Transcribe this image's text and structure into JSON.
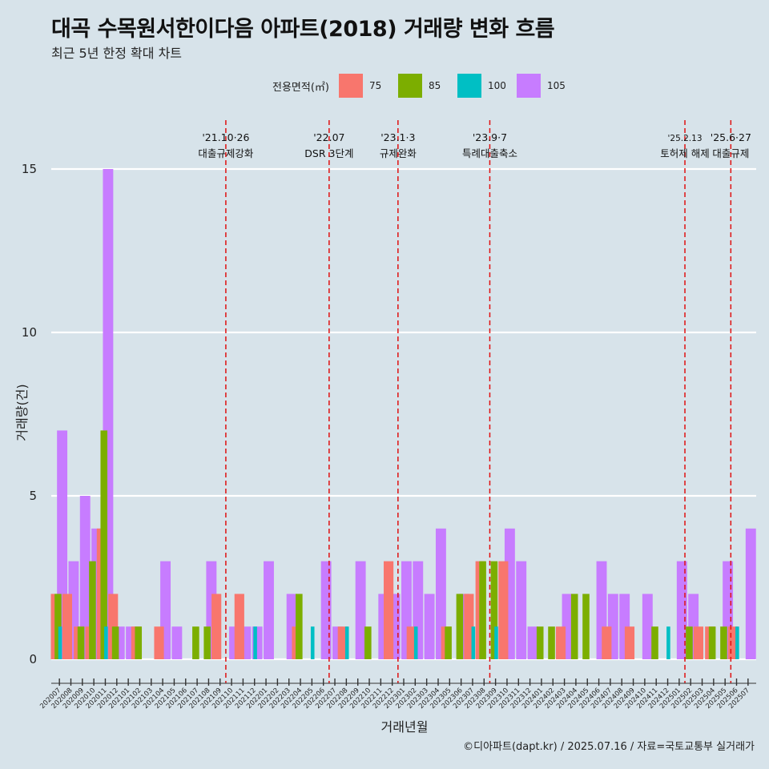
{
  "title": "대곡 수목원서한이다음 아파트(2018) 거래량 변화 흐름",
  "subtitle": "최근 5년 한정 확대 차트",
  "caption": "©디아파트(dapt.kr) / 2025.07.16 / 자료=국토교통부 실거래가",
  "legend": {
    "title": "전용면적(㎡)",
    "items": [
      {
        "label": "75",
        "color": "#f8766d"
      },
      {
        "label": "85",
        "color": "#7cae00"
      },
      {
        "label": "100",
        "color": "#00bfc4"
      },
      {
        "label": "105",
        "color": "#c77cff"
      }
    ]
  },
  "chart_data": {
    "type": "bar",
    "xlabel": "거래년월",
    "ylabel": "거래량(건)",
    "ylim": [
      0,
      15
    ],
    "yticks": [
      0,
      5,
      10,
      15
    ],
    "grid": true,
    "legend_position": "top",
    "categories": [
      "202007",
      "202008",
      "202009",
      "202010",
      "202011",
      "202012",
      "202101",
      "202102",
      "202103",
      "202104",
      "202105",
      "202106",
      "202107",
      "202108",
      "202109",
      "202110",
      "202111",
      "202112",
      "202201",
      "202202",
      "202203",
      "202204",
      "202205",
      "202206",
      "202207",
      "202208",
      "202209",
      "202210",
      "202211",
      "202212",
      "202301",
      "202302",
      "202303",
      "202304",
      "202305",
      "202306",
      "202307",
      "202308",
      "202309",
      "202310",
      "202311",
      "202312",
      "202401",
      "202402",
      "202403",
      "202404",
      "202405",
      "202406",
      "202407",
      "202408",
      "202409",
      "202410",
      "202411",
      "202412",
      "202501",
      "202502",
      "202503",
      "202504",
      "202505",
      "202506",
      "202507"
    ],
    "series": [
      {
        "name": "75",
        "color": "#f8766d",
        "values": [
          2,
          2,
          1,
          1,
          4,
          2,
          0,
          1,
          0,
          1,
          0,
          0,
          0,
          0,
          2,
          0,
          2,
          0,
          0,
          0,
          0,
          1,
          0,
          0,
          0,
          1,
          0,
          0,
          0,
          3,
          0,
          1,
          0,
          0,
          1,
          0,
          2,
          3,
          0,
          3,
          0,
          0,
          0,
          0,
          1,
          0,
          0,
          0,
          1,
          0,
          1,
          0,
          0,
          0,
          0,
          0,
          1,
          1,
          0,
          1,
          0
        ]
      },
      {
        "name": "85",
        "color": "#7cae00",
        "values": [
          2,
          0,
          1,
          3,
          7,
          1,
          0,
          1,
          0,
          0,
          0,
          0,
          1,
          1,
          0,
          0,
          0,
          0,
          0,
          0,
          0,
          2,
          0,
          0,
          0,
          0,
          0,
          1,
          0,
          0,
          0,
          0,
          0,
          0,
          1,
          2,
          0,
          3,
          3,
          0,
          0,
          0,
          1,
          1,
          0,
          2,
          2,
          0,
          0,
          0,
          0,
          0,
          1,
          0,
          0,
          1,
          0,
          1,
          1,
          0,
          0
        ]
      },
      {
        "name": "100",
        "color": "#00bfc4",
        "values": [
          1,
          0,
          0,
          0,
          1,
          0,
          0,
          0,
          0,
          0,
          0,
          0,
          0,
          0,
          0,
          0,
          0,
          1,
          0,
          0,
          0,
          0,
          1,
          0,
          0,
          1,
          0,
          0,
          0,
          0,
          0,
          1,
          0,
          0,
          0,
          0,
          1,
          0,
          1,
          0,
          0,
          0,
          0,
          0,
          0,
          0,
          0,
          0,
          0,
          0,
          0,
          0,
          0,
          1,
          0,
          0,
          0,
          0,
          0,
          1,
          0
        ]
      },
      {
        "name": "105",
        "color": "#c77cff",
        "values": [
          7,
          3,
          5,
          4,
          15,
          1,
          1,
          0,
          0,
          3,
          1,
          0,
          0,
          3,
          0,
          1,
          1,
          1,
          3,
          0,
          2,
          0,
          0,
          3,
          1,
          0,
          3,
          0,
          2,
          2,
          3,
          3,
          2,
          4,
          0,
          2,
          0,
          0,
          0,
          4,
          3,
          1,
          0,
          0,
          2,
          0,
          0,
          3,
          2,
          2,
          0,
          2,
          0,
          0,
          3,
          2,
          0,
          0,
          3,
          0,
          4
        ]
      }
    ],
    "events": [
      {
        "date": "'21.10·26",
        "label": "대출규제강화",
        "category": "202110"
      },
      {
        "date": "'22.07",
        "label": "DSR 3단계",
        "category": "202207"
      },
      {
        "date": "'23.1·3",
        "label": "규제완화",
        "category": "202301"
      },
      {
        "date": "'23.9·7",
        "label": "특례대출축소",
        "category": "202309"
      },
      {
        "date": "'25.2.13",
        "label": "토허제 해제",
        "category": "202502"
      },
      {
        "date": "'25.6·27",
        "label": "대출규제",
        "category": "202506"
      }
    ]
  }
}
